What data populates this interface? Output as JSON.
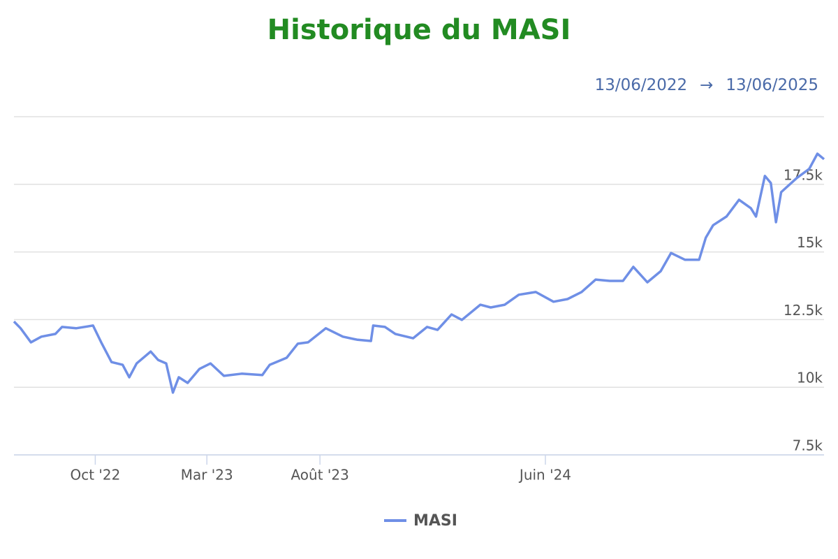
{
  "chart_data": {
    "type": "line",
    "title": "Historique du MASI",
    "date_range": {
      "from": "13/06/2022",
      "separator": "→",
      "to": "13/06/2025"
    },
    "x": [
      "2022-06-13",
      "2022-06-22",
      "2022-07-06",
      "2022-07-20",
      "2022-08-08",
      "2022-08-17",
      "2022-09-05",
      "2022-09-28",
      "2022-10-09",
      "2022-10-23",
      "2022-11-07",
      "2022-11-16",
      "2022-11-26",
      "2022-12-15",
      "2022-12-25",
      "2023-01-05",
      "2023-01-14",
      "2023-01-22",
      "2023-02-03",
      "2023-02-19",
      "2023-03-06",
      "2023-03-24",
      "2023-04-17",
      "2023-05-15",
      "2023-05-25",
      "2023-06-17",
      "2023-07-02",
      "2023-07-16",
      "2023-08-09",
      "2023-09-01",
      "2023-09-20",
      "2023-10-09",
      "2023-10-12",
      "2023-10-28",
      "2023-11-11",
      "2023-12-05",
      "2023-12-24",
      "2024-01-07",
      "2024-01-26",
      "2024-02-09",
      "2024-03-05",
      "2024-03-19",
      "2024-04-07",
      "2024-04-26",
      "2024-05-19",
      "2024-06-12",
      "2024-07-01",
      "2024-07-20",
      "2024-08-08",
      "2024-08-27",
      "2024-09-14",
      "2024-09-28",
      "2024-10-17",
      "2024-11-04",
      "2024-11-18",
      "2024-12-07",
      "2024-12-26",
      "2025-01-04",
      "2025-01-14",
      "2025-02-01",
      "2025-02-18",
      "2025-03-06",
      "2025-03-13",
      "2025-03-25",
      "2025-04-02",
      "2025-04-09",
      "2025-04-16",
      "2025-05-07",
      "2025-05-24",
      "2025-06-04",
      "2025-06-13"
    ],
    "series": [
      {
        "name": "MASI",
        "color": "#6f8fe6",
        "values": [
          12430,
          12180,
          11660,
          11870,
          11970,
          12230,
          12180,
          12280,
          11660,
          10930,
          10830,
          10370,
          10880,
          11320,
          11010,
          10880,
          9800,
          10370,
          10160,
          10680,
          10880,
          10420,
          10500,
          10450,
          10830,
          11090,
          11610,
          11660,
          12180,
          11870,
          11760,
          11710,
          12280,
          12230,
          11970,
          11810,
          12230,
          12120,
          12690,
          12490,
          13050,
          12950,
          13050,
          13420,
          13520,
          13160,
          13260,
          13520,
          13980,
          13930,
          13930,
          14450,
          13880,
          14290,
          14960,
          14710,
          14710,
          15530,
          15990,
          16310,
          16930,
          16620,
          16310,
          17810,
          17550,
          16100,
          17210,
          17730,
          18070,
          18630,
          18430
        ]
      }
    ],
    "xlim": [
      "2022-06-13",
      "2025-06-13"
    ],
    "xticks": [
      {
        "value": "2022-10-01",
        "label": "Oct '22"
      },
      {
        "value": "2023-03-01",
        "label": "Mar '23"
      },
      {
        "value": "2023-08-01",
        "label": "Août '23"
      },
      {
        "value": "2024-06-01",
        "label": "Juin '24"
      }
    ],
    "ylim": [
      7500,
      20000
    ],
    "yticks": [
      {
        "value": 7500,
        "label": "7.5k"
      },
      {
        "value": 10000,
        "label": "10k"
      },
      {
        "value": 12500,
        "label": "12.5k"
      },
      {
        "value": 15000,
        "label": "15k"
      },
      {
        "value": 17500,
        "label": "17.5k"
      },
      {
        "value": 20000,
        "label": ""
      }
    ],
    "grid": true
  }
}
